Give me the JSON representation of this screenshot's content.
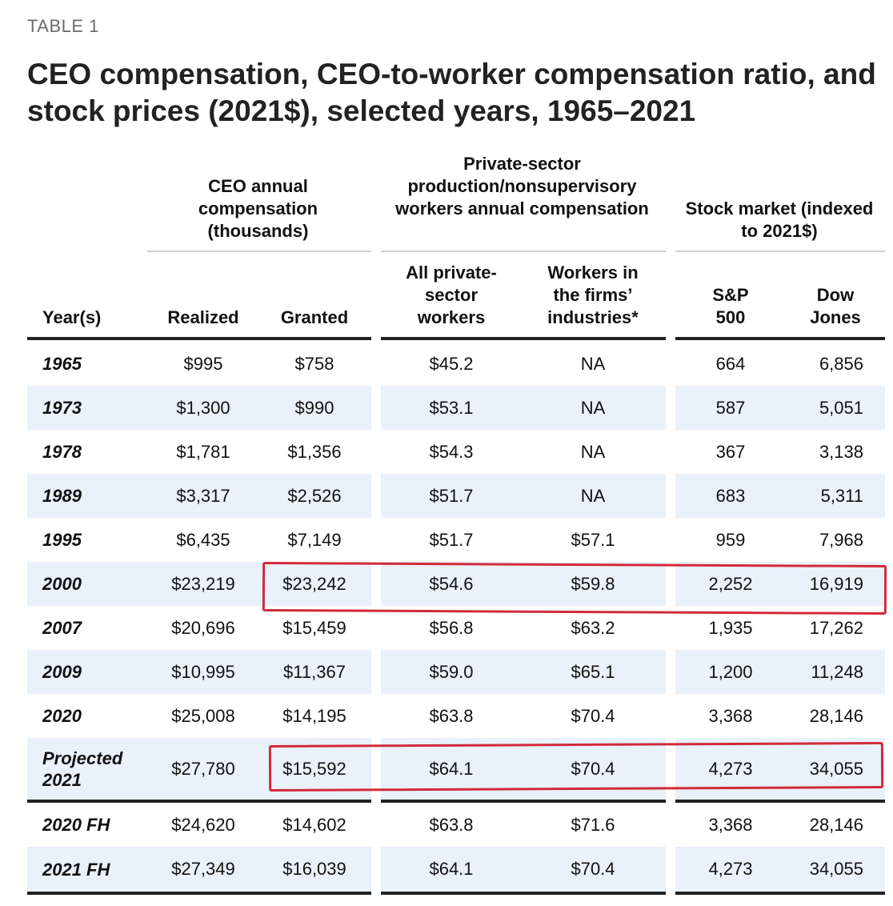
{
  "table_label": "TABLE 1",
  "title": "CEO compensation, CEO-to-worker compensation ratio, and stock prices (2021$), selected years, 1965–2021",
  "header": {
    "group_ceo": "CEO annual compensation (thousands)",
    "group_workers": "Private-sector production/nonsupervisory workers annual compensation",
    "group_stock": "Stock market (indexed to 2021$)",
    "col_year": "Year(s)",
    "col_realized": "Realized",
    "col_granted": "Granted",
    "col_all_private": "All private-sector workers",
    "col_firms_industries": "Workers in the firms’ industries*",
    "col_sp500": "S&P 500",
    "col_dow": "Dow Jones"
  },
  "rows": [
    {
      "year": "1965",
      "realized": "$995",
      "granted": "$758",
      "all_private": "$45.2",
      "firms": "NA",
      "sp500": "664",
      "dow": "6,856"
    },
    {
      "year": "1973",
      "realized": "$1,300",
      "granted": "$990",
      "all_private": "$53.1",
      "firms": "NA",
      "sp500": "587",
      "dow": "5,051"
    },
    {
      "year": "1978",
      "realized": "$1,781",
      "granted": "$1,356",
      "all_private": "$54.3",
      "firms": "NA",
      "sp500": "367",
      "dow": "3,138"
    },
    {
      "year": "1989",
      "realized": "$3,317",
      "granted": "$2,526",
      "all_private": "$51.7",
      "firms": "NA",
      "sp500": "683",
      "dow": "5,311"
    },
    {
      "year": "1995",
      "realized": "$6,435",
      "granted": "$7,149",
      "all_private": "$51.7",
      "firms": "$57.1",
      "sp500": "959",
      "dow": "7,968"
    },
    {
      "year": "2000",
      "realized": "$23,219",
      "granted": "$23,242",
      "all_private": "$54.6",
      "firms": "$59.8",
      "sp500": "2,252",
      "dow": "16,919"
    },
    {
      "year": "2007",
      "realized": "$20,696",
      "granted": "$15,459",
      "all_private": "$56.8",
      "firms": "$63.2",
      "sp500": "1,935",
      "dow": "17,262"
    },
    {
      "year": "2009",
      "realized": "$10,995",
      "granted": "$11,367",
      "all_private": "$59.0",
      "firms": "$65.1",
      "sp500": "1,200",
      "dow": "11,248"
    },
    {
      "year": "2020",
      "realized": "$25,008",
      "granted": "$14,195",
      "all_private": "$63.8",
      "firms": "$70.4",
      "sp500": "3,368",
      "dow": "28,146"
    },
    {
      "year": "Projected 2021",
      "realized": "$27,780",
      "granted": "$15,592",
      "all_private": "$64.1",
      "firms": "$70.4",
      "sp500": "4,273",
      "dow": "34,055"
    }
  ],
  "fh_rows": [
    {
      "year": "2020 FH",
      "realized": "$24,620",
      "granted": "$14,602",
      "all_private": "$63.8",
      "firms": "$71.6",
      "sp500": "3,368",
      "dow": "28,146"
    },
    {
      "year": "2021 FH",
      "realized": "$27,349",
      "granted": "$16,039",
      "all_private": "$64.1",
      "firms": "$70.4",
      "sp500": "4,273",
      "dow": "34,055"
    }
  ],
  "highlights": [
    "2000",
    "Projected 2021"
  ],
  "colors": {
    "band": "#e9f1fb",
    "highlight": "#d22a3a",
    "rule_dark": "#222222",
    "rule_light": "#cfcfcf"
  }
}
